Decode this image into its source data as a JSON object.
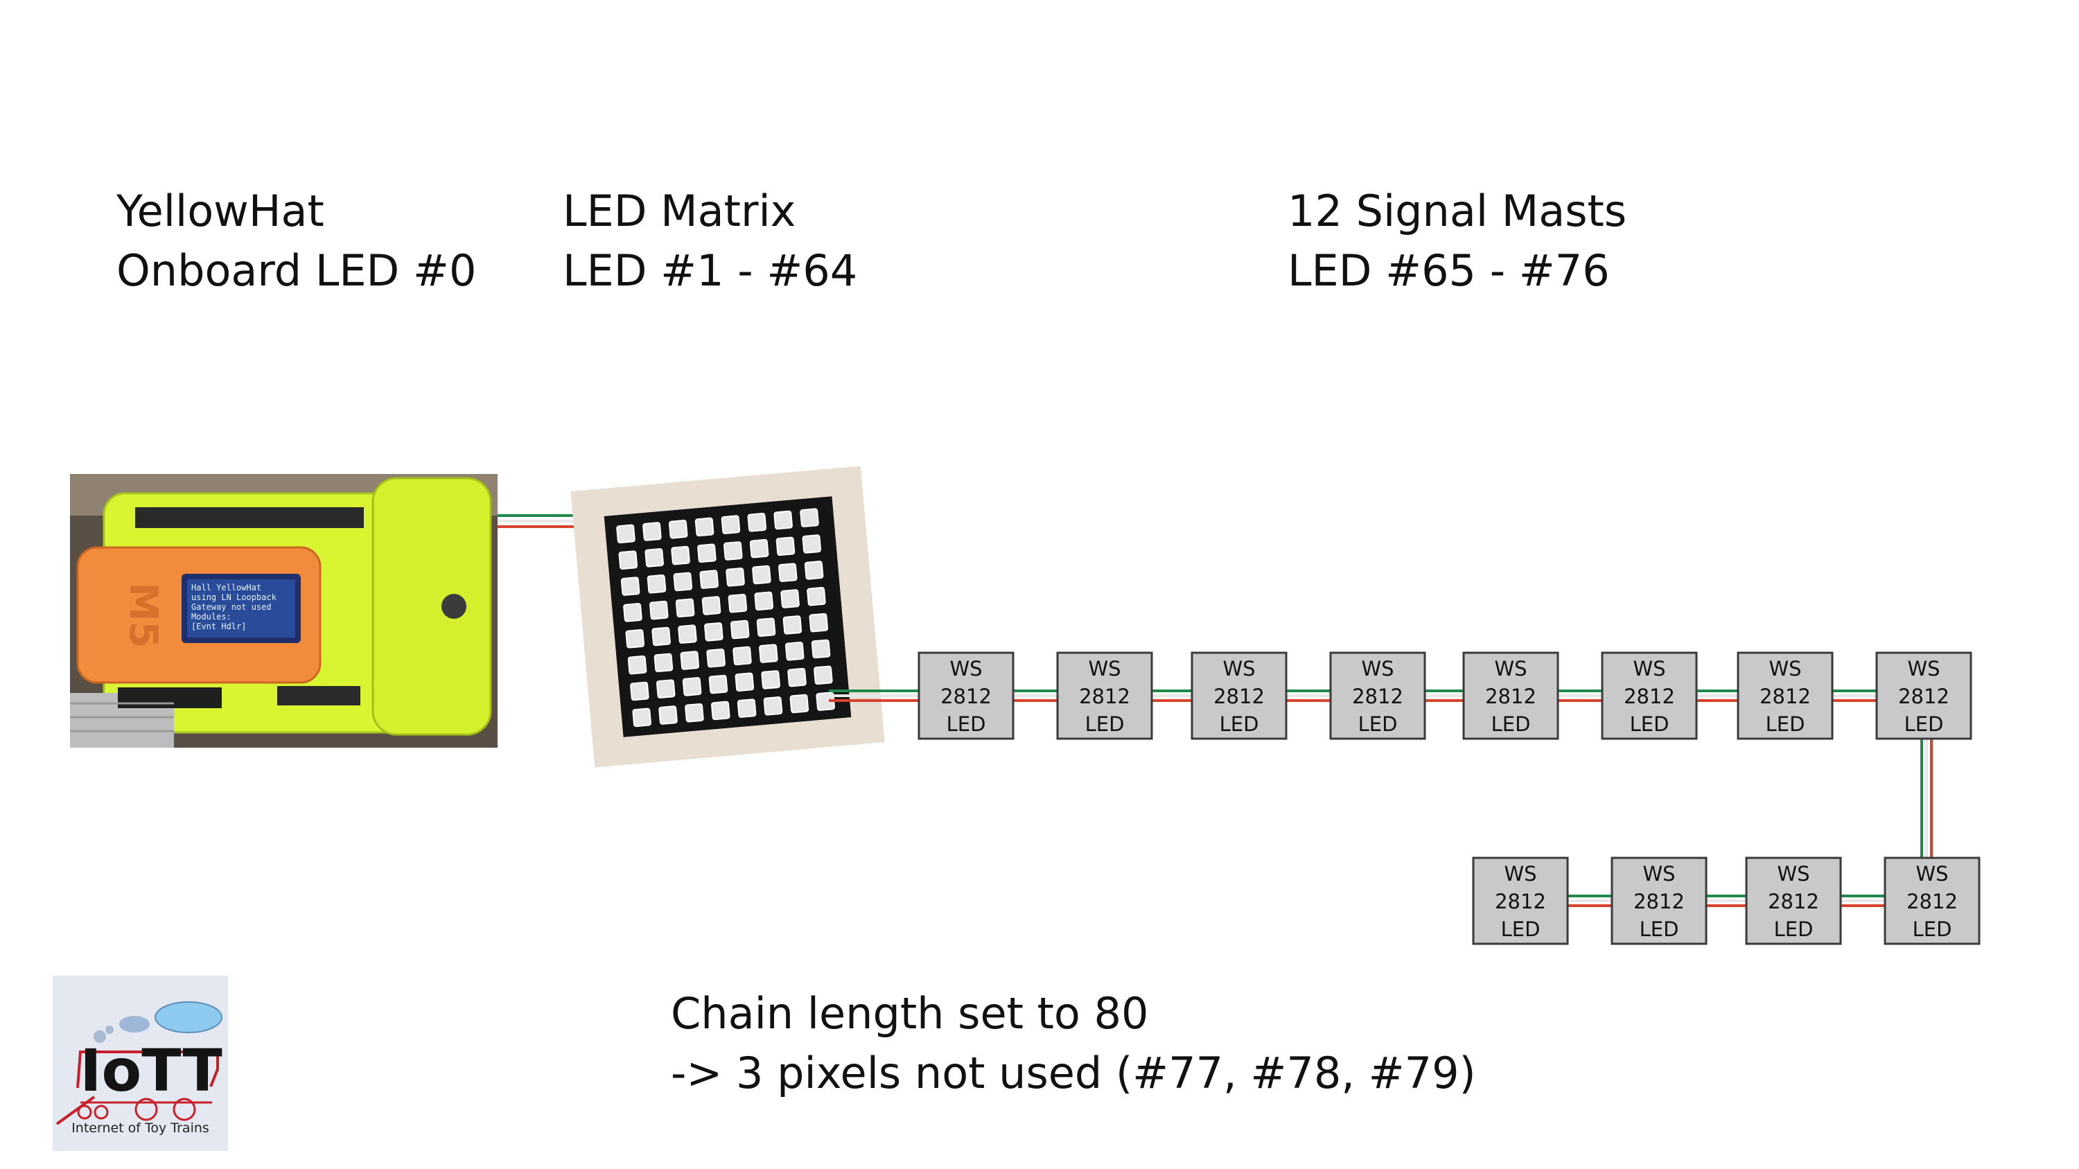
{
  "labels": {
    "yellowhat": {
      "line1": "YellowHat",
      "line2": "Onboard LED #0"
    },
    "matrix": {
      "line1": "LED Matrix",
      "line2": "LED #1 - #64"
    },
    "masts": {
      "line1": "12 Signal Masts",
      "line2": "LED #65 - #76"
    }
  },
  "led_module": {
    "line1": "WS",
    "line2": "2812",
    "line3": "LED"
  },
  "footer": {
    "line1": "Chain length set to 80",
    "line2": "-> 3 pixels not used (#77, #78, #79)"
  },
  "device": {
    "brand_mark": "M5",
    "screen_lines": [
      "Hall YellowHat",
      "using LN Loopback",
      "Gateway not used",
      "Modules:",
      "[Evnt Hdlr]"
    ]
  },
  "logo": {
    "wordmark": "IoTT",
    "caption": "Internet of Toy Trains"
  },
  "colors": {
    "wire_red": "#d8432f",
    "wire_green": "#1f8a4c",
    "led_fill": "#c9c9c9",
    "hat_yellow": "#d9f531",
    "m5_orange": "#f28b3c"
  }
}
